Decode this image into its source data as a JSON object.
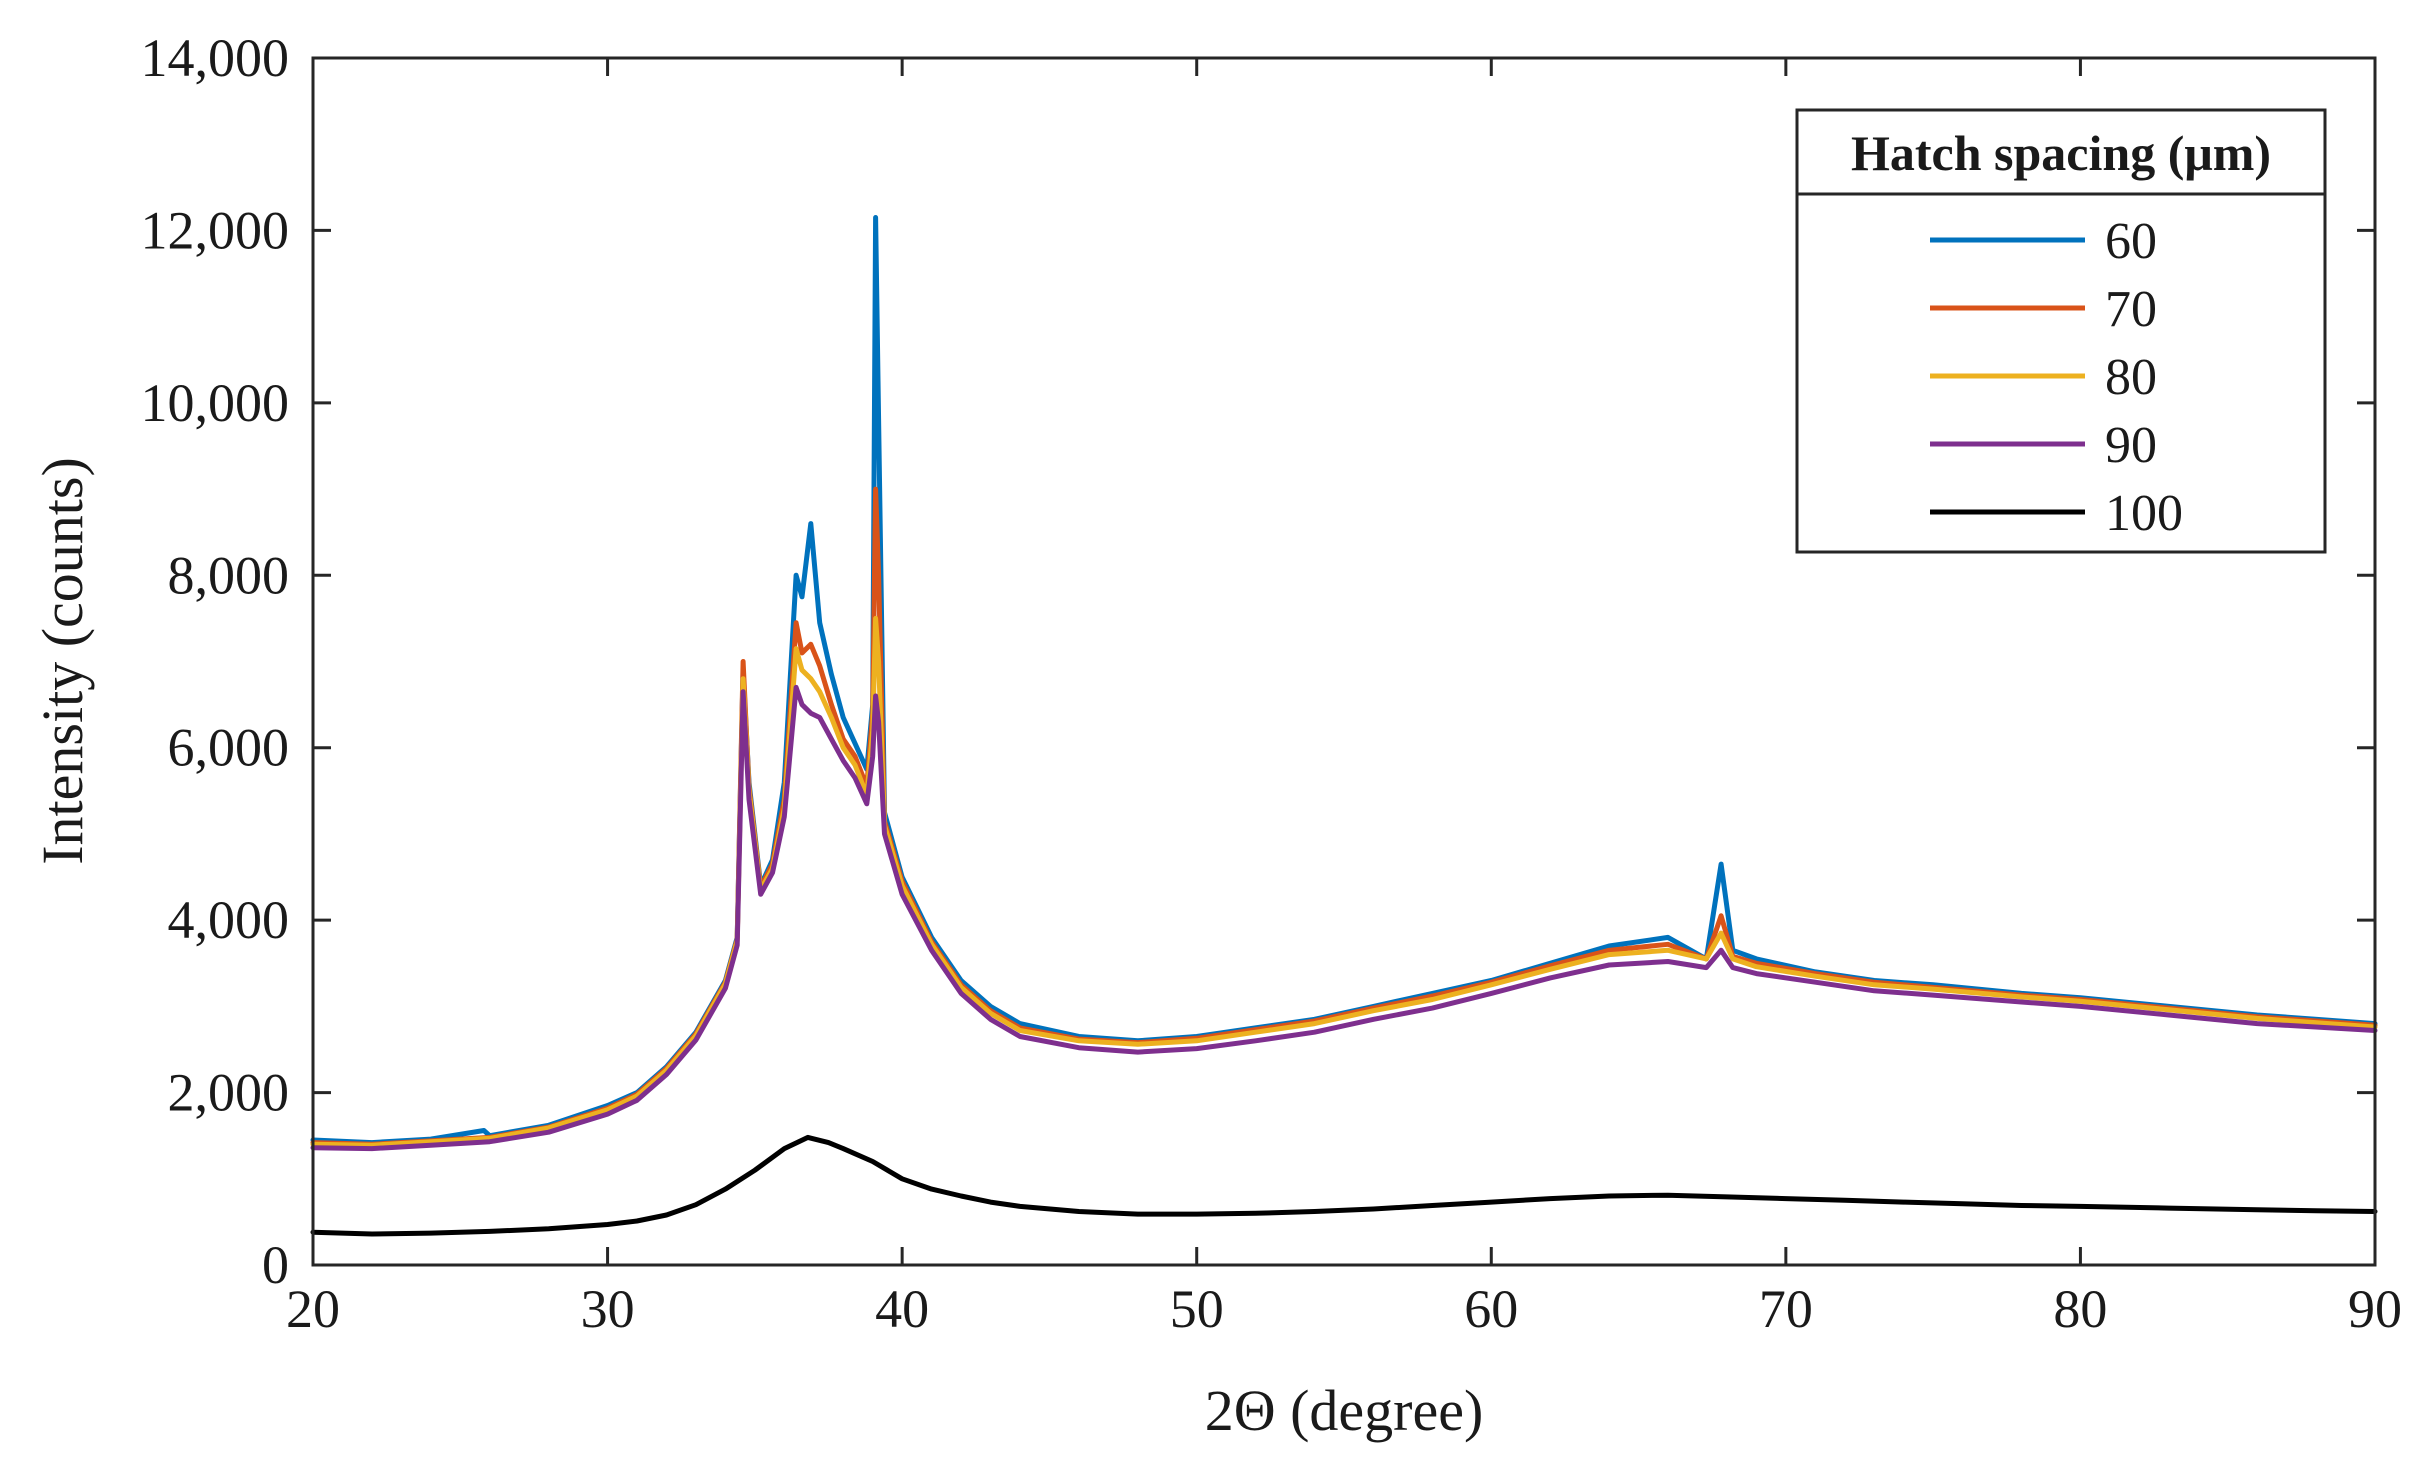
{
  "chart_data": {
    "type": "line",
    "xlabel": "2Θ (degree)",
    "ylabel": "Intensity (counts)",
    "xlim": [
      20,
      90
    ],
    "ylim": [
      0,
      14000
    ],
    "xticks": [
      20,
      30,
      40,
      50,
      60,
      70,
      80,
      90
    ],
    "yticks": [
      0,
      2000,
      4000,
      6000,
      8000,
      10000,
      12000,
      14000
    ],
    "ytick_labels": [
      "0",
      "2,000",
      "4,000",
      "6,000",
      "8,000",
      "10,000",
      "12,000",
      "14,000"
    ],
    "grid": false,
    "legend": {
      "title": "Hatch spacing (μm)",
      "placement": "top-right"
    },
    "series": [
      {
        "name": "60",
        "color": "#0072BD",
        "points": [
          [
            20,
            1450
          ],
          [
            22,
            1420
          ],
          [
            24,
            1460
          ],
          [
            25.8,
            1560
          ],
          [
            26,
            1500
          ],
          [
            28,
            1620
          ],
          [
            30,
            1850
          ],
          [
            31,
            2000
          ],
          [
            32,
            2300
          ],
          [
            33,
            2700
          ],
          [
            34,
            3300
          ],
          [
            34.4,
            3800
          ],
          [
            34.6,
            6900
          ],
          [
            34.8,
            5600
          ],
          [
            35.2,
            4400
          ],
          [
            35.6,
            4700
          ],
          [
            36,
            5600
          ],
          [
            36.4,
            8000
          ],
          [
            36.6,
            7750
          ],
          [
            36.9,
            8600
          ],
          [
            37.2,
            7450
          ],
          [
            37.6,
            6850
          ],
          [
            38,
            6350
          ],
          [
            38.4,
            6050
          ],
          [
            38.8,
            5750
          ],
          [
            39.0,
            6500
          ],
          [
            39.1,
            12150
          ],
          [
            39.2,
            9800
          ],
          [
            39.4,
            5250
          ],
          [
            40,
            4500
          ],
          [
            41,
            3800
          ],
          [
            42,
            3300
          ],
          [
            43,
            3000
          ],
          [
            44,
            2800
          ],
          [
            46,
            2650
          ],
          [
            48,
            2600
          ],
          [
            50,
            2650
          ],
          [
            52,
            2750
          ],
          [
            54,
            2850
          ],
          [
            56,
            3000
          ],
          [
            58,
            3150
          ],
          [
            60,
            3300
          ],
          [
            62,
            3500
          ],
          [
            64,
            3700
          ],
          [
            66,
            3800
          ],
          [
            67.3,
            3550
          ],
          [
            67.8,
            4650
          ],
          [
            68.2,
            3650
          ],
          [
            69,
            3550
          ],
          [
            71,
            3400
          ],
          [
            73,
            3300
          ],
          [
            75,
            3250
          ],
          [
            78,
            3150
          ],
          [
            80,
            3100
          ],
          [
            83,
            3000
          ],
          [
            86,
            2900
          ],
          [
            90,
            2800
          ]
        ]
      },
      {
        "name": "70",
        "color": "#D95319",
        "points": [
          [
            20,
            1420
          ],
          [
            22,
            1400
          ],
          [
            24,
            1440
          ],
          [
            26,
            1480
          ],
          [
            28,
            1600
          ],
          [
            30,
            1820
          ],
          [
            31,
            1980
          ],
          [
            32,
            2280
          ],
          [
            33,
            2680
          ],
          [
            34,
            3280
          ],
          [
            34.4,
            3780
          ],
          [
            34.6,
            7000
          ],
          [
            34.8,
            5550
          ],
          [
            35.2,
            4380
          ],
          [
            35.6,
            4650
          ],
          [
            36,
            5400
          ],
          [
            36.4,
            7450
          ],
          [
            36.6,
            7100
          ],
          [
            36.9,
            7200
          ],
          [
            37.2,
            6950
          ],
          [
            37.6,
            6500
          ],
          [
            38,
            6100
          ],
          [
            38.4,
            5900
          ],
          [
            38.8,
            5550
          ],
          [
            39.0,
            6400
          ],
          [
            39.1,
            9000
          ],
          [
            39.2,
            8000
          ],
          [
            39.4,
            5150
          ],
          [
            40,
            4450
          ],
          [
            41,
            3750
          ],
          [
            42,
            3250
          ],
          [
            43,
            2950
          ],
          [
            44,
            2750
          ],
          [
            46,
            2620
          ],
          [
            48,
            2580
          ],
          [
            50,
            2630
          ],
          [
            52,
            2730
          ],
          [
            54,
            2830
          ],
          [
            56,
            2980
          ],
          [
            58,
            3120
          ],
          [
            60,
            3280
          ],
          [
            62,
            3470
          ],
          [
            64,
            3650
          ],
          [
            66,
            3720
          ],
          [
            67.3,
            3550
          ],
          [
            67.8,
            4050
          ],
          [
            68.2,
            3580
          ],
          [
            69,
            3500
          ],
          [
            71,
            3380
          ],
          [
            73,
            3280
          ],
          [
            75,
            3220
          ],
          [
            78,
            3130
          ],
          [
            80,
            3080
          ],
          [
            83,
            2980
          ],
          [
            86,
            2880
          ],
          [
            90,
            2780
          ]
        ]
      },
      {
        "name": "80",
        "color": "#EDB120",
        "points": [
          [
            20,
            1400
          ],
          [
            22,
            1390
          ],
          [
            24,
            1430
          ],
          [
            26,
            1470
          ],
          [
            28,
            1590
          ],
          [
            30,
            1800
          ],
          [
            31,
            1960
          ],
          [
            32,
            2260
          ],
          [
            33,
            2660
          ],
          [
            34,
            3260
          ],
          [
            34.4,
            3760
          ],
          [
            34.6,
            6800
          ],
          [
            34.8,
            5500
          ],
          [
            35.2,
            4350
          ],
          [
            35.6,
            4600
          ],
          [
            36,
            5300
          ],
          [
            36.4,
            7150
          ],
          [
            36.6,
            6900
          ],
          [
            36.9,
            6800
          ],
          [
            37.2,
            6650
          ],
          [
            37.6,
            6350
          ],
          [
            38,
            6000
          ],
          [
            38.4,
            5800
          ],
          [
            38.8,
            5450
          ],
          [
            39.0,
            6200
          ],
          [
            39.1,
            7500
          ],
          [
            39.2,
            7000
          ],
          [
            39.4,
            5100
          ],
          [
            40,
            4400
          ],
          [
            41,
            3720
          ],
          [
            42,
            3220
          ],
          [
            43,
            2920
          ],
          [
            44,
            2720
          ],
          [
            46,
            2600
          ],
          [
            48,
            2560
          ],
          [
            50,
            2600
          ],
          [
            52,
            2700
          ],
          [
            54,
            2800
          ],
          [
            56,
            2950
          ],
          [
            58,
            3080
          ],
          [
            60,
            3250
          ],
          [
            62,
            3430
          ],
          [
            64,
            3600
          ],
          [
            66,
            3650
          ],
          [
            67.3,
            3550
          ],
          [
            67.8,
            3850
          ],
          [
            68.2,
            3550
          ],
          [
            69,
            3460
          ],
          [
            71,
            3350
          ],
          [
            73,
            3250
          ],
          [
            75,
            3200
          ],
          [
            78,
            3110
          ],
          [
            80,
            3060
          ],
          [
            83,
            2960
          ],
          [
            86,
            2860
          ],
          [
            90,
            2760
          ]
        ]
      },
      {
        "name": "90",
        "color": "#7E2F8E",
        "points": [
          [
            20,
            1360
          ],
          [
            22,
            1350
          ],
          [
            24,
            1390
          ],
          [
            26,
            1430
          ],
          [
            28,
            1540
          ],
          [
            30,
            1750
          ],
          [
            31,
            1910
          ],
          [
            32,
            2210
          ],
          [
            33,
            2610
          ],
          [
            34,
            3210
          ],
          [
            34.4,
            3710
          ],
          [
            34.6,
            6650
          ],
          [
            34.8,
            5400
          ],
          [
            35.2,
            4300
          ],
          [
            35.6,
            4550
          ],
          [
            36,
            5200
          ],
          [
            36.4,
            6700
          ],
          [
            36.6,
            6500
          ],
          [
            36.9,
            6400
          ],
          [
            37.2,
            6350
          ],
          [
            37.6,
            6100
          ],
          [
            38,
            5850
          ],
          [
            38.4,
            5650
          ],
          [
            38.8,
            5350
          ],
          [
            39.0,
            5900
          ],
          [
            39.1,
            6600
          ],
          [
            39.2,
            6300
          ],
          [
            39.4,
            5000
          ],
          [
            40,
            4300
          ],
          [
            41,
            3650
          ],
          [
            42,
            3150
          ],
          [
            43,
            2850
          ],
          [
            44,
            2650
          ],
          [
            46,
            2520
          ],
          [
            48,
            2470
          ],
          [
            50,
            2510
          ],
          [
            52,
            2600
          ],
          [
            54,
            2700
          ],
          [
            56,
            2850
          ],
          [
            58,
            2980
          ],
          [
            60,
            3150
          ],
          [
            62,
            3330
          ],
          [
            64,
            3480
          ],
          [
            66,
            3520
          ],
          [
            67.3,
            3450
          ],
          [
            67.8,
            3650
          ],
          [
            68.2,
            3450
          ],
          [
            69,
            3380
          ],
          [
            71,
            3280
          ],
          [
            73,
            3180
          ],
          [
            75,
            3130
          ],
          [
            78,
            3050
          ],
          [
            80,
            3000
          ],
          [
            83,
            2900
          ],
          [
            86,
            2800
          ],
          [
            90,
            2720
          ]
        ]
      },
      {
        "name": "100",
        "color": "#000000",
        "points": [
          [
            20,
            380
          ],
          [
            22,
            360
          ],
          [
            24,
            370
          ],
          [
            26,
            390
          ],
          [
            28,
            420
          ],
          [
            30,
            470
          ],
          [
            31,
            510
          ],
          [
            32,
            580
          ],
          [
            33,
            700
          ],
          [
            34,
            880
          ],
          [
            35,
            1100
          ],
          [
            36,
            1350
          ],
          [
            36.8,
            1480
          ],
          [
            37.5,
            1420
          ],
          [
            38,
            1350
          ],
          [
            39,
            1200
          ],
          [
            40,
            1000
          ],
          [
            41,
            880
          ],
          [
            42,
            800
          ],
          [
            43,
            730
          ],
          [
            44,
            680
          ],
          [
            46,
            620
          ],
          [
            48,
            590
          ],
          [
            50,
            590
          ],
          [
            52,
            600
          ],
          [
            54,
            620
          ],
          [
            56,
            650
          ],
          [
            58,
            690
          ],
          [
            60,
            730
          ],
          [
            62,
            770
          ],
          [
            64,
            800
          ],
          [
            66,
            810
          ],
          [
            68,
            790
          ],
          [
            70,
            770
          ],
          [
            72,
            750
          ],
          [
            74,
            730
          ],
          [
            76,
            710
          ],
          [
            78,
            690
          ],
          [
            80,
            680
          ],
          [
            83,
            660
          ],
          [
            86,
            640
          ],
          [
            88,
            630
          ],
          [
            90,
            620
          ]
        ]
      }
    ]
  }
}
